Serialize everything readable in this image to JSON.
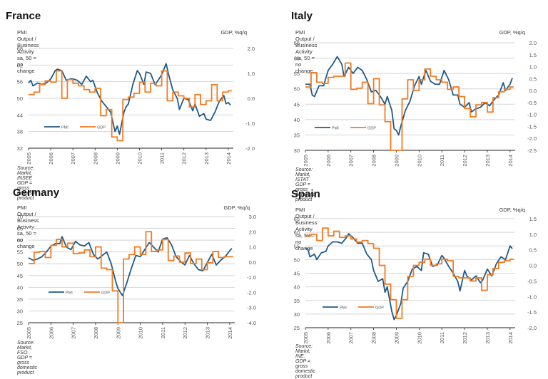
{
  "chart_data": [
    {
      "id": "france",
      "type": "line",
      "title": "France",
      "subtitle": "PMI Output / Business Activity sa, 50 = no change",
      "ylabel_right": "GDP, %q/q",
      "source": "Source: Markit, INSEE GDP = gross domestic product",
      "ylim_left": [
        32,
        68
      ],
      "yticks_left": [
        "68",
        "62",
        "56",
        "50",
        "44",
        "38",
        "32"
      ],
      "ylim_right": [
        -2.0,
        2.0
      ],
      "yticks_right": [
        "2.0",
        "1.0",
        "0.0",
        "-1.0",
        "-2.0"
      ],
      "xlim": [
        2005,
        2014.1
      ],
      "xticks": [
        "2005",
        "2006",
        "2007",
        "2008",
        "2009",
        "2010",
        "2011",
        "2012",
        "2013",
        "2014"
      ],
      "grid": true,
      "legend": {
        "position": "lower-left",
        "entries": [
          "PMI",
          "GDP"
        ]
      },
      "series": [
        {
          "name": "PMI",
          "axis": "left",
          "color": "#1f5a8a",
          "x": [
            2005.0,
            2005.1,
            2005.2,
            2005.4,
            2005.6,
            2005.8,
            2006.0,
            2006.2,
            2006.3,
            2006.5,
            2006.7,
            2006.9,
            2007.0,
            2007.2,
            2007.4,
            2007.6,
            2007.8,
            2007.9,
            2008.1,
            2008.3,
            2008.5,
            2008.7,
            2008.9,
            2009.0,
            2009.1,
            2009.2,
            2009.3,
            2009.4,
            2009.5,
            2009.7,
            2009.9,
            2010.0,
            2010.2,
            2010.3,
            2010.5,
            2010.7,
            2010.8,
            2011.0,
            2011.2,
            2011.3,
            2011.5,
            2011.7,
            2011.8,
            2012.0,
            2012.2,
            2012.4,
            2012.5,
            2012.7,
            2012.9,
            2013.0,
            2013.2,
            2013.4,
            2013.6,
            2013.8,
            2013.9,
            2014.0,
            2014.1
          ],
          "y": [
            55.5,
            56.5,
            54.5,
            55.5,
            55.0,
            55.5,
            57.0,
            60.0,
            60.5,
            60.0,
            56.5,
            57.0,
            57.0,
            56.5,
            55.0,
            58.0,
            56.0,
            56.5,
            52.0,
            49.0,
            47.0,
            45.0,
            38.0,
            40.0,
            37.0,
            41.0,
            45.0,
            47.0,
            48.0,
            55.0,
            60.0,
            59.0,
            55.0,
            59.5,
            59.0,
            55.0,
            56.0,
            58.5,
            62.5,
            59.0,
            53.0,
            50.0,
            46.0,
            50.0,
            49.5,
            45.5,
            48.0,
            43.5,
            44.5,
            42.5,
            42.0,
            45.0,
            49.0,
            51.0,
            48.0,
            48.5,
            47.5
          ]
        },
        {
          "name": "GDP",
          "axis": "right",
          "color": "#f47a20",
          "x": [
            2005.0,
            2005.25,
            2005.5,
            2005.75,
            2006.0,
            2006.25,
            2006.5,
            2006.75,
            2007.0,
            2007.25,
            2007.5,
            2007.75,
            2008.0,
            2008.25,
            2008.5,
            2008.75,
            2009.0,
            2009.25,
            2009.5,
            2009.75,
            2010.0,
            2010.25,
            2010.5,
            2010.75,
            2011.0,
            2011.25,
            2011.5,
            2011.75,
            2012.0,
            2012.25,
            2012.5,
            2012.75,
            2013.0,
            2013.25,
            2013.5,
            2013.75,
            2014.0
          ],
          "y": [
            0.15,
            0.25,
            0.55,
            0.7,
            0.65,
            1.1,
            0.0,
            0.75,
            0.6,
            0.5,
            0.35,
            0.25,
            0.4,
            -0.7,
            -0.45,
            -1.55,
            -1.7,
            -0.05,
            0.05,
            0.2,
            0.65,
            0.25,
            0.6,
            0.5,
            1.1,
            -0.1,
            0.25,
            0.1,
            0.0,
            -0.35,
            0.15,
            -0.25,
            -0.1,
            0.55,
            -0.1,
            0.25,
            0.3
          ]
        }
      ]
    },
    {
      "id": "italy",
      "type": "line",
      "title": "Italy",
      "subtitle": "PMI Output / Business Activity sa, 50 = no change",
      "ylabel_right": "GDP, %q/q",
      "source": "Source: Markit, ISTAT GDP = gross domestic product",
      "ylim_left": [
        30,
        65
      ],
      "yticks_left": [
        "65",
        "60",
        "55",
        "50",
        "45",
        "40",
        "35",
        "30"
      ],
      "ylim_right": [
        -2.5,
        2.0
      ],
      "yticks_right": [
        "2.0",
        "1.5",
        "1.0",
        "0.5",
        "0.0",
        "-0.5",
        "-1.0",
        "-1.5",
        "-2.0",
        "-2.5"
      ],
      "xlim": [
        2005,
        2014.1
      ],
      "xticks": [
        "2005",
        "2006",
        "2007",
        "2008",
        "2009",
        "2010",
        "2011",
        "2012",
        "2013",
        "2014"
      ],
      "grid": true,
      "legend": {
        "position": "lower-left",
        "entries": [
          "PMI",
          "GDP"
        ]
      },
      "series": [
        {
          "name": "PMI",
          "axis": "left",
          "color": "#1f5a8a",
          "x": [
            2005.0,
            2005.2,
            2005.3,
            2005.4,
            2005.6,
            2005.8,
            2006.0,
            2006.2,
            2006.4,
            2006.6,
            2006.7,
            2006.9,
            2007.1,
            2007.3,
            2007.5,
            2007.7,
            2007.9,
            2008.1,
            2008.3,
            2008.5,
            2008.6,
            2008.8,
            2008.9,
            2009.0,
            2009.1,
            2009.2,
            2009.4,
            2009.6,
            2009.8,
            2010.0,
            2010.1,
            2010.3,
            2010.5,
            2010.7,
            2010.9,
            2011.1,
            2011.3,
            2011.5,
            2011.7,
            2011.8,
            2012.0,
            2012.2,
            2012.3,
            2012.5,
            2012.7,
            2012.9,
            2013.1,
            2013.3,
            2013.5,
            2013.7,
            2013.8,
            2014.0,
            2014.1
          ],
          "y": [
            51.5,
            51.5,
            48.0,
            47.5,
            51.0,
            51.0,
            56.0,
            58.0,
            60.5,
            58.0,
            54.0,
            57.0,
            55.0,
            57.0,
            56.0,
            53.0,
            49.0,
            49.5,
            47.5,
            45.0,
            47.5,
            43.0,
            37.0,
            36.5,
            35.0,
            38.0,
            43.0,
            46.0,
            51.0,
            54.0,
            51.5,
            56.0,
            52.5,
            51.5,
            51.5,
            56.0,
            53.0,
            48.0,
            48.0,
            45.0,
            44.0,
            45.5,
            42.5,
            43.5,
            44.0,
            45.5,
            44.5,
            46.5,
            48.0,
            52.0,
            49.5,
            51.5,
            53.5
          ]
        },
        {
          "name": "GDP",
          "axis": "right",
          "color": "#f47a20",
          "x": [
            2005.0,
            2005.25,
            2005.5,
            2005.75,
            2006.0,
            2006.25,
            2006.5,
            2006.75,
            2007.0,
            2007.25,
            2007.5,
            2007.75,
            2008.0,
            2008.25,
            2008.5,
            2008.75,
            2009.0,
            2009.25,
            2009.5,
            2009.75,
            2010.0,
            2010.25,
            2010.5,
            2010.75,
            2011.0,
            2011.25,
            2011.5,
            2011.75,
            2012.0,
            2012.25,
            2012.5,
            2012.75,
            2013.0,
            2013.25,
            2013.5,
            2013.75,
            2014.0
          ],
          "y": [
            0.15,
            0.75,
            0.35,
            0.3,
            0.55,
            0.6,
            0.6,
            1.15,
            0.05,
            0.1,
            0.35,
            -0.55,
            0.5,
            -0.6,
            -1.3,
            -2.5,
            -2.5,
            -0.35,
            0.45,
            0.0,
            0.45,
            0.9,
            0.6,
            0.45,
            0.35,
            0.05,
            0.15,
            -0.25,
            -0.75,
            -1.1,
            -0.6,
            -0.5,
            -0.9,
            -0.3,
            -0.05,
            0.05,
            0.15
          ]
        }
      ]
    },
    {
      "id": "germany",
      "type": "line",
      "title": "Germany",
      "subtitle": "PMI Output / Business Activity sa, 50 = no change",
      "ylabel_right": "GDP, %q/q",
      "source": "Source: Markit, FSO. GDP = gross domestic product",
      "ylim_left": [
        25,
        70
      ],
      "yticks_left": [
        "70",
        "65",
        "60",
        "55",
        "50",
        "45",
        "40",
        "35",
        "30",
        "25"
      ],
      "ylim_right": [
        -4.0,
        3.0
      ],
      "yticks_right": [
        "3.0",
        "2.0",
        "1.0",
        "0.0",
        "-1.0",
        "-2.0",
        "-3.0",
        "-4.0"
      ],
      "xlim": [
        2005,
        2014.1
      ],
      "xticks": [
        "2005",
        "2006",
        "2007",
        "2008",
        "2009",
        "2010",
        "2011",
        "2012",
        "2013",
        "2014"
      ],
      "grid": true,
      "legend": {
        "position": "lower-left",
        "entries": [
          "PMI",
          "GDP"
        ]
      },
      "series": [
        {
          "name": "PMI",
          "axis": "left",
          "color": "#1f5a8a",
          "x": [
            2005.0,
            2005.2,
            2005.4,
            2005.6,
            2005.8,
            2006.0,
            2006.2,
            2006.4,
            2006.5,
            2006.7,
            2006.9,
            2007.1,
            2007.3,
            2007.5,
            2007.7,
            2007.9,
            2008.1,
            2008.3,
            2008.5,
            2008.7,
            2008.9,
            2009.0,
            2009.2,
            2009.4,
            2009.6,
            2009.8,
            2010.0,
            2010.2,
            2010.4,
            2010.6,
            2010.8,
            2011.0,
            2011.2,
            2011.4,
            2011.6,
            2011.8,
            2012.0,
            2012.2,
            2012.4,
            2012.6,
            2012.8,
            2013.0,
            2013.2,
            2013.4,
            2013.6,
            2013.8,
            2014.0,
            2014.1
          ],
          "y": [
            52.5,
            51.5,
            52.0,
            53.0,
            55.0,
            57.5,
            58.5,
            58.5,
            61.5,
            57.0,
            56.0,
            59.5,
            58.0,
            57.5,
            59.0,
            54.0,
            52.0,
            53.5,
            55.0,
            50.0,
            42.5,
            39.5,
            36.5,
            42.0,
            48.0,
            53.5,
            53.0,
            56.0,
            59.0,
            57.0,
            55.0,
            60.5,
            61.0,
            58.0,
            53.0,
            51.0,
            49.5,
            53.5,
            50.0,
            47.5,
            47.0,
            50.5,
            54.0,
            49.5,
            51.5,
            53.0,
            55.5,
            56.5
          ]
        },
        {
          "name": "GDP",
          "axis": "right",
          "color": "#f47a20",
          "x": [
            2005.0,
            2005.25,
            2005.5,
            2005.75,
            2006.0,
            2006.25,
            2006.5,
            2006.75,
            2007.0,
            2007.25,
            2007.5,
            2007.75,
            2008.0,
            2008.25,
            2008.5,
            2008.75,
            2009.0,
            2009.25,
            2009.5,
            2009.75,
            2010.0,
            2010.25,
            2010.5,
            2010.75,
            2011.0,
            2011.25,
            2011.5,
            2011.75,
            2012.0,
            2012.25,
            2012.5,
            2012.75,
            2013.0,
            2013.25,
            2013.5,
            2013.75,
            2014.0
          ],
          "y": [
            -0.1,
            0.65,
            0.7,
            0.3,
            1.1,
            1.5,
            1.0,
            1.25,
            0.55,
            0.6,
            0.8,
            0.35,
            1.0,
            -0.4,
            -0.5,
            -1.9,
            -4.0,
            0.2,
            0.5,
            1.0,
            0.5,
            2.0,
            0.7,
            0.8,
            1.5,
            0.1,
            0.4,
            0.0,
            0.6,
            -0.1,
            0.2,
            -0.5,
            -0.05,
            0.7,
            0.3,
            0.35,
            0.35
          ]
        }
      ]
    },
    {
      "id": "spain",
      "type": "line",
      "title": "Spain",
      "subtitle": "PMI Output / Business Activity sa, 50 = no change",
      "ylabel_right": "GDP, %q/q",
      "source": "Source: Markit, INE. GDP = gross domestic product",
      "ylim_left": [
        25,
        65
      ],
      "yticks_left": [
        "65",
        "60",
        "55",
        "50",
        "45",
        "40",
        "35",
        "30",
        "25"
      ],
      "ylim_right": [
        -2.0,
        1.5
      ],
      "yticks_right": [
        "1.5",
        "1.0",
        "0.5",
        "0.0",
        "-0.5",
        "-1.0",
        "-1.5",
        "-2.0"
      ],
      "xlim": [
        2005,
        2014.1
      ],
      "xticks": [
        "2005",
        "2006",
        "2007",
        "2008",
        "2009",
        "2010",
        "2011",
        "2012",
        "2013",
        "2014"
      ],
      "grid": true,
      "legend": {
        "position": "lower-left",
        "entries": [
          "PMI",
          "GDP"
        ]
      },
      "series": [
        {
          "name": "PMI",
          "axis": "left",
          "color": "#1f5a8a",
          "x": [
            2005.0,
            2005.1,
            2005.2,
            2005.4,
            2005.5,
            2005.7,
            2005.9,
            2006.0,
            2006.2,
            2006.4,
            2006.6,
            2006.8,
            2006.9,
            2007.1,
            2007.3,
            2007.5,
            2007.7,
            2007.9,
            2008.0,
            2008.2,
            2008.4,
            2008.5,
            2008.6,
            2008.8,
            2008.9,
            2009.0,
            2009.2,
            2009.3,
            2009.5,
            2009.7,
            2009.9,
            2010.1,
            2010.2,
            2010.4,
            2010.6,
            2010.8,
            2011.0,
            2011.1,
            2011.3,
            2011.5,
            2011.7,
            2011.8,
            2012.0,
            2012.1,
            2012.3,
            2012.5,
            2012.7,
            2012.8,
            2013.0,
            2013.2,
            2013.4,
            2013.6,
            2013.8,
            2014.0,
            2014.1
          ],
          "y": [
            54.0,
            54.0,
            51.0,
            52.0,
            50.0,
            52.5,
            53.0,
            55.0,
            56.5,
            56.5,
            56.0,
            58.0,
            59.5,
            58.0,
            56.0,
            56.0,
            52.0,
            50.0,
            46.0,
            42.0,
            43.0,
            38.0,
            40.0,
            31.0,
            28.0,
            29.5,
            34.0,
            39.5,
            42.0,
            46.5,
            47.5,
            46.0,
            52.5,
            52.0,
            47.5,
            48.0,
            51.5,
            50.5,
            47.5,
            45.0,
            42.0,
            38.5,
            46.0,
            44.0,
            42.5,
            44.0,
            41.5,
            42.5,
            46.5,
            44.0,
            48.5,
            51.0,
            50.0,
            55.0,
            54.0
          ]
        },
        {
          "name": "GDP",
          "axis": "right",
          "color": "#f47a20",
          "x": [
            2005.0,
            2005.25,
            2005.5,
            2005.75,
            2006.0,
            2006.25,
            2006.5,
            2006.75,
            2007.0,
            2007.25,
            2007.5,
            2007.75,
            2008.0,
            2008.25,
            2008.5,
            2008.75,
            2009.0,
            2009.25,
            2009.5,
            2009.75,
            2010.0,
            2010.25,
            2010.5,
            2010.75,
            2011.0,
            2011.25,
            2011.5,
            2011.75,
            2012.0,
            2012.25,
            2012.5,
            2012.75,
            2013.0,
            2013.25,
            2013.5,
            2013.75,
            2014.0
          ],
          "y": [
            0.95,
            1.0,
            0.8,
            1.2,
            0.95,
            1.1,
            0.9,
            0.95,
            0.85,
            0.75,
            0.8,
            0.7,
            0.55,
            0.0,
            -0.6,
            -1.1,
            -1.7,
            -1.1,
            -0.35,
            0.0,
            0.1,
            0.2,
            0.0,
            0.05,
            0.2,
            0.15,
            -0.35,
            -0.4,
            -0.4,
            -0.5,
            -0.4,
            -0.8,
            -0.3,
            -0.1,
            0.1,
            0.15,
            0.2
          ]
        }
      ]
    }
  ]
}
